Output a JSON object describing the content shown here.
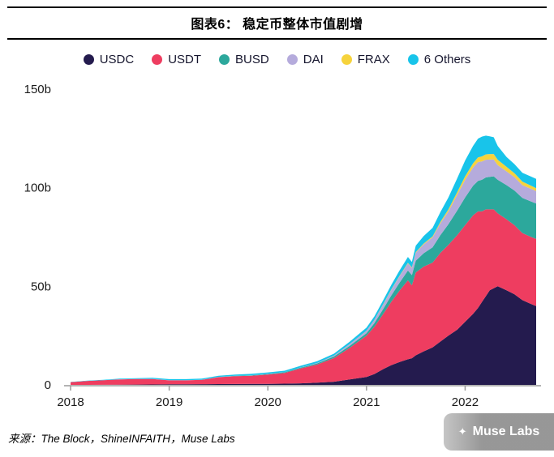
{
  "page": {
    "title": "图表6： 稳定币整体市值剧增",
    "source": "来源：The Block，ShineINFAITH，Muse Labs",
    "watermark": "Muse Labs"
  },
  "chart_data": {
    "type": "area",
    "stacked": true,
    "title": "图表6： 稳定币整体市值剧增",
    "xlabel": "",
    "ylabel": "",
    "unit": "billions USD",
    "x_range": [
      2018,
      2022.72
    ],
    "y_range": [
      0,
      150
    ],
    "grid": false,
    "legend_position": "top-center",
    "y_ticks": [
      {
        "value": 0,
        "label": "0"
      },
      {
        "value": 50,
        "label": "50b"
      },
      {
        "value": 100,
        "label": "100b"
      },
      {
        "value": 150,
        "label": "150b"
      }
    ],
    "x_ticks": [
      {
        "value": 2018,
        "label": "2018"
      },
      {
        "value": 2019,
        "label": "2019"
      },
      {
        "value": 2020,
        "label": "2020"
      },
      {
        "value": 2021,
        "label": "2021"
      },
      {
        "value": 2022,
        "label": "2022"
      }
    ],
    "x": [
      2018.0,
      2018.17,
      2018.33,
      2018.5,
      2018.67,
      2018.83,
      2019.0,
      2019.17,
      2019.33,
      2019.5,
      2019.67,
      2019.83,
      2020.0,
      2020.17,
      2020.33,
      2020.5,
      2020.67,
      2020.83,
      2021.0,
      2021.08,
      2021.17,
      2021.25,
      2021.33,
      2021.42,
      2021.46,
      2021.5,
      2021.58,
      2021.67,
      2021.75,
      2021.83,
      2021.92,
      2022.0,
      2022.08,
      2022.13,
      2022.17,
      2022.21,
      2022.25,
      2022.29,
      2022.33,
      2022.42,
      2022.5,
      2022.58,
      2022.67,
      2022.72
    ],
    "series": [
      {
        "name": "USDC",
        "color": "#241b4e",
        "values": [
          0,
          0,
          0.05,
          0.1,
          0.15,
          0.2,
          0.3,
          0.3,
          0.35,
          0.4,
          0.45,
          0.5,
          0.5,
          0.6,
          0.8,
          1.1,
          1.6,
          2.8,
          4,
          5.5,
          8,
          10,
          11.5,
          13,
          13.5,
          15,
          17,
          19,
          22,
          25,
          28,
          32,
          36,
          39,
          42,
          45,
          48,
          49,
          50,
          48,
          46,
          43,
          41,
          40
        ]
      },
      {
        "name": "USDT",
        "color": "#ee3d60",
        "values": [
          1.4,
          2.0,
          2.3,
          2.7,
          2.8,
          2.8,
          2.0,
          2.0,
          2.2,
          3.5,
          4.0,
          4.1,
          4.7,
          5.5,
          7.5,
          9.2,
          12,
          16,
          21,
          24,
          28,
          32,
          36,
          40,
          37,
          42,
          43,
          43,
          45,
          46,
          48,
          49,
          50,
          49,
          46,
          44,
          41,
          40,
          37,
          36,
          35,
          34,
          34,
          34
        ]
      },
      {
        "name": "BUSD",
        "color": "#2ca89c",
        "values": [
          0,
          0,
          0,
          0,
          0,
          0,
          0,
          0,
          0,
          0.05,
          0.1,
          0.2,
          0.3,
          0.3,
          0.4,
          0.6,
          0.8,
          1.0,
          1.2,
          1.8,
          2.5,
          3.2,
          4.0,
          5.0,
          5.2,
          6.0,
          6.8,
          7.8,
          9.0,
          10.5,
          12.5,
          14,
          15,
          15.5,
          16,
          16.2,
          16.5,
          16.8,
          17,
          17.3,
          17.6,
          17.8,
          18,
          18
        ]
      },
      {
        "name": "DAI",
        "color": "#b5abdc",
        "values": [
          0,
          0.02,
          0.04,
          0.06,
          0.08,
          0.1,
          0.1,
          0.1,
          0.1,
          0.1,
          0.1,
          0.1,
          0.12,
          0.1,
          0.15,
          0.2,
          0.4,
          0.9,
          1.2,
          1.6,
          2.3,
          2.8,
          3.2,
          3.6,
          3.6,
          4.0,
          4.5,
          5.0,
          6.0,
          6.5,
          8.0,
          9.0,
          9.2,
          9.5,
          9.3,
          9.0,
          8.8,
          8.5,
          7.5,
          7.0,
          6.8,
          6.5,
          6.4,
          6.3
        ]
      },
      {
        "name": "FRAX",
        "color": "#f6d33c",
        "values": [
          0,
          0,
          0,
          0,
          0,
          0,
          0,
          0,
          0,
          0,
          0,
          0,
          0,
          0,
          0,
          0,
          0.02,
          0.05,
          0.1,
          0.15,
          0.2,
          0.25,
          0.3,
          0.3,
          0.3,
          0.35,
          0.4,
          0.5,
          0.7,
          1.0,
          1.3,
          1.8,
          2.2,
          2.4,
          2.6,
          2.7,
          2.8,
          2.8,
          2.7,
          2.3,
          2.0,
          1.8,
          1.6,
          1.5
        ]
      },
      {
        "name": "6 Others",
        "color": "#18c4ea",
        "values": [
          0.1,
          0.15,
          0.2,
          0.3,
          0.4,
          0.5,
          0.5,
          0.5,
          0.5,
          0.6,
          0.6,
          0.7,
          0.7,
          0.7,
          0.8,
          0.9,
          1.0,
          1.2,
          1.5,
          1.7,
          2.0,
          2.3,
          2.6,
          3.0,
          2.8,
          3.3,
          3.8,
          4.3,
          5.0,
          6.0,
          7.0,
          8.0,
          8.8,
          9.5,
          10.0,
          9.5,
          9.0,
          8.5,
          7.0,
          5.0,
          4.6,
          4.5,
          4.6,
          4.7
        ]
      }
    ]
  }
}
